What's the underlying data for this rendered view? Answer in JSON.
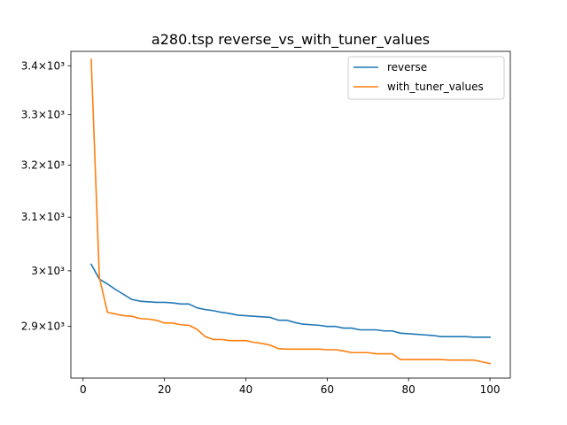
{
  "chart_data": {
    "type": "line",
    "title": "a280.tsp  reverse_vs_with_tuner_values",
    "xlabel": "",
    "ylabel": "",
    "xlim": [
      -3,
      105
    ],
    "ylim": [
      2810,
      3430
    ],
    "y_scale": "log",
    "grid": false,
    "legend_position": "top-right",
    "x_ticks": [
      0,
      20,
      40,
      60,
      80,
      100
    ],
    "x_tick_labels": [
      "0",
      "20",
      "40",
      "60",
      "80",
      "100"
    ],
    "y_ticks": [
      2900,
      3000,
      3100,
      3200,
      3300,
      3400
    ],
    "y_tick_labels": [
      "2.9×10³",
      "3×10³",
      "3.1×10³",
      "3.2×10³",
      "3.3×10³",
      "3.4×10³"
    ],
    "x": [
      2,
      4,
      6,
      8,
      10,
      12,
      14,
      16,
      18,
      20,
      22,
      24,
      26,
      28,
      30,
      32,
      34,
      36,
      38,
      40,
      42,
      44,
      46,
      48,
      50,
      52,
      54,
      56,
      58,
      60,
      62,
      64,
      66,
      68,
      70,
      72,
      74,
      76,
      78,
      80,
      82,
      84,
      86,
      88,
      90,
      92,
      94,
      96,
      98,
      100
    ],
    "series": [
      {
        "name": "reverse",
        "color": "#1f77b4",
        "values": [
          3012,
          2985,
          2976,
          2966,
          2957,
          2948,
          2945,
          2944,
          2943,
          2943,
          2942,
          2940,
          2940,
          2933,
          2930,
          2928,
          2925,
          2923,
          2920,
          2919,
          2918,
          2917,
          2916,
          2911,
          2911,
          2907,
          2904,
          2903,
          2902,
          2900,
          2900,
          2897,
          2897,
          2894,
          2894,
          2894,
          2892,
          2892,
          2888,
          2887,
          2886,
          2885,
          2884,
          2882,
          2882,
          2882,
          2882,
          2881,
          2881,
          2881
        ]
      },
      {
        "name": "with_tuner_values",
        "color": "#ff7f0e",
        "values": [
          3413,
          2988,
          2925,
          2922,
          2919,
          2918,
          2914,
          2913,
          2911,
          2906,
          2906,
          2903,
          2902,
          2895,
          2882,
          2877,
          2877,
          2875,
          2875,
          2875,
          2872,
          2870,
          2867,
          2861,
          2860,
          2860,
          2860,
          2860,
          2860,
          2859,
          2859,
          2857,
          2854,
          2854,
          2854,
          2852,
          2852,
          2852,
          2842,
          2842,
          2842,
          2842,
          2842,
          2842,
          2841,
          2841,
          2841,
          2841,
          2838,
          2835
        ]
      }
    ]
  }
}
